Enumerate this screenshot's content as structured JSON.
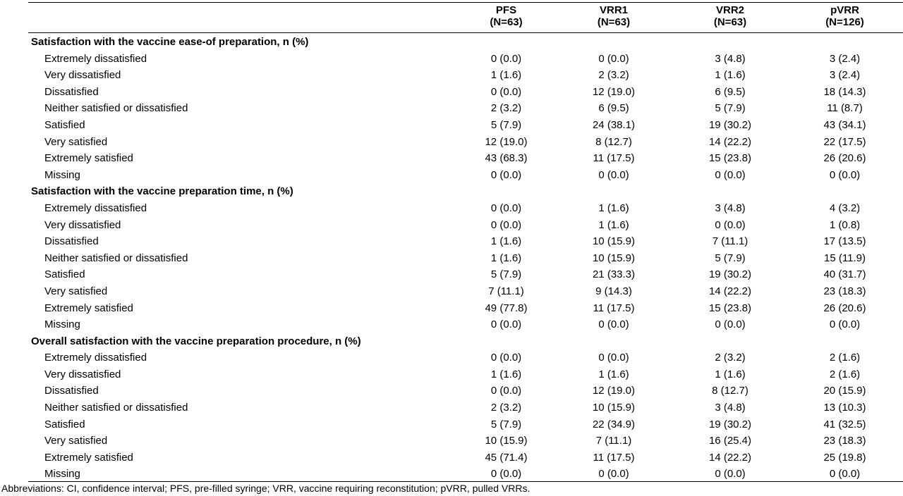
{
  "columns": [
    {
      "name": "PFS",
      "n": "(N=63)"
    },
    {
      "name": "VRR1",
      "n": "(N=63)"
    },
    {
      "name": "VRR2",
      "n": "(N=63)"
    },
    {
      "name": "pVRR",
      "n": "(N=126)"
    }
  ],
  "sections": [
    {
      "title": "Satisfaction with the vaccine ease-of preparation, n (%)",
      "rows": [
        {
          "label": "Extremely dissatisfied",
          "values": [
            "0 (0.0)",
            "0 (0.0)",
            "3 (4.8)",
            "3 (2.4)"
          ]
        },
        {
          "label": "Very dissatisfied",
          "values": [
            "1 (1.6)",
            "2 (3.2)",
            "1 (1.6)",
            "3 (2.4)"
          ]
        },
        {
          "label": "Dissatisfied",
          "values": [
            "0 (0.0)",
            "12 (19.0)",
            "6 (9.5)",
            "18 (14.3)"
          ]
        },
        {
          "label": "Neither satisfied or dissatisfied",
          "values": [
            "2 (3.2)",
            "6 (9.5)",
            "5 (7.9)",
            "11 (8.7)"
          ]
        },
        {
          "label": "Satisfied",
          "values": [
            "5 (7.9)",
            "24 (38.1)",
            "19 (30.2)",
            "43 (34.1)"
          ]
        },
        {
          "label": "Very satisfied",
          "values": [
            "12 (19.0)",
            "8 (12.7)",
            "14 (22.2)",
            "22 (17.5)"
          ]
        },
        {
          "label": "Extremely satisfied",
          "values": [
            "43 (68.3)",
            "11 (17.5)",
            "15 (23.8)",
            "26 (20.6)"
          ]
        },
        {
          "label": "Missing",
          "values": [
            "0 (0.0)",
            "0 (0.0)",
            "0 (0.0)",
            "0 (0.0)"
          ]
        }
      ]
    },
    {
      "title": "Satisfaction with the vaccine preparation time, n (%)",
      "rows": [
        {
          "label": "Extremely dissatisfied",
          "values": [
            "0 (0.0)",
            "1 (1.6)",
            "3 (4.8)",
            "4 (3.2)"
          ]
        },
        {
          "label": "Very dissatisfied",
          "values": [
            "0 (0.0)",
            "1 (1.6)",
            "0 (0.0)",
            "1 (0.8)"
          ]
        },
        {
          "label": "Dissatisfied",
          "values": [
            "1 (1.6)",
            "10 (15.9)",
            "7 (11.1)",
            "17 (13.5)"
          ]
        },
        {
          "label": "Neither satisfied or dissatisfied",
          "values": [
            "1 (1.6)",
            "10 (15.9)",
            "5 (7.9)",
            "15 (11.9)"
          ]
        },
        {
          "label": "Satisfied",
          "values": [
            "5 (7.9)",
            "21 (33.3)",
            "19 (30.2)",
            "40 (31.7)"
          ]
        },
        {
          "label": "Very satisfied",
          "values": [
            "7 (11.1)",
            "9 (14.3)",
            "14 (22.2)",
            "23 (18.3)"
          ]
        },
        {
          "label": "Extremely satisfied",
          "values": [
            "49 (77.8)",
            "11 (17.5)",
            "15 (23.8)",
            "26 (20.6)"
          ]
        },
        {
          "label": "Missing",
          "values": [
            "0 (0.0)",
            "0 (0.0)",
            "0 (0.0)",
            "0 (0.0)"
          ]
        }
      ]
    },
    {
      "title": "Overall satisfaction with the vaccine preparation procedure, n (%)",
      "rows": [
        {
          "label": "Extremely dissatisfied",
          "values": [
            "0 (0.0)",
            "0 (0.0)",
            "2 (3.2)",
            "2 (1.6)"
          ]
        },
        {
          "label": "Very dissatisfied",
          "values": [
            "1 (1.6)",
            "1 (1.6)",
            "1 (1.6)",
            "2 (1.6)"
          ]
        },
        {
          "label": "Dissatisfied",
          "values": [
            "0 (0.0)",
            "12 (19.0)",
            "8 (12.7)",
            "20 (15.9)"
          ]
        },
        {
          "label": "Neither satisfied or dissatisfied",
          "values": [
            "2 (3.2)",
            "10 (15.9)",
            "3 (4.8)",
            "13 (10.3)"
          ]
        },
        {
          "label": "Satisfied",
          "values": [
            "5 (7.9)",
            "22 (34.9)",
            "19 (30.2)",
            "41 (32.5)"
          ]
        },
        {
          "label": "Very satisfied",
          "values": [
            "10 (15.9)",
            "7 (11.1)",
            "16 (25.4)",
            "23 (18.3)"
          ]
        },
        {
          "label": "Extremely satisfied",
          "values": [
            "45 (71.4)",
            "11 (17.5)",
            "14 (22.2)",
            "25 (19.8)"
          ]
        },
        {
          "label": "Missing",
          "values": [
            "0 (0.0)",
            "0 (0.0)",
            "0 (0.0)",
            "0 (0.0)"
          ]
        }
      ]
    }
  ],
  "footnote": "Abbreviations: CI, confidence interval; PFS, pre-filled syringe; VRR, vaccine requiring reconstitution; pVRR, pulled VRRs."
}
